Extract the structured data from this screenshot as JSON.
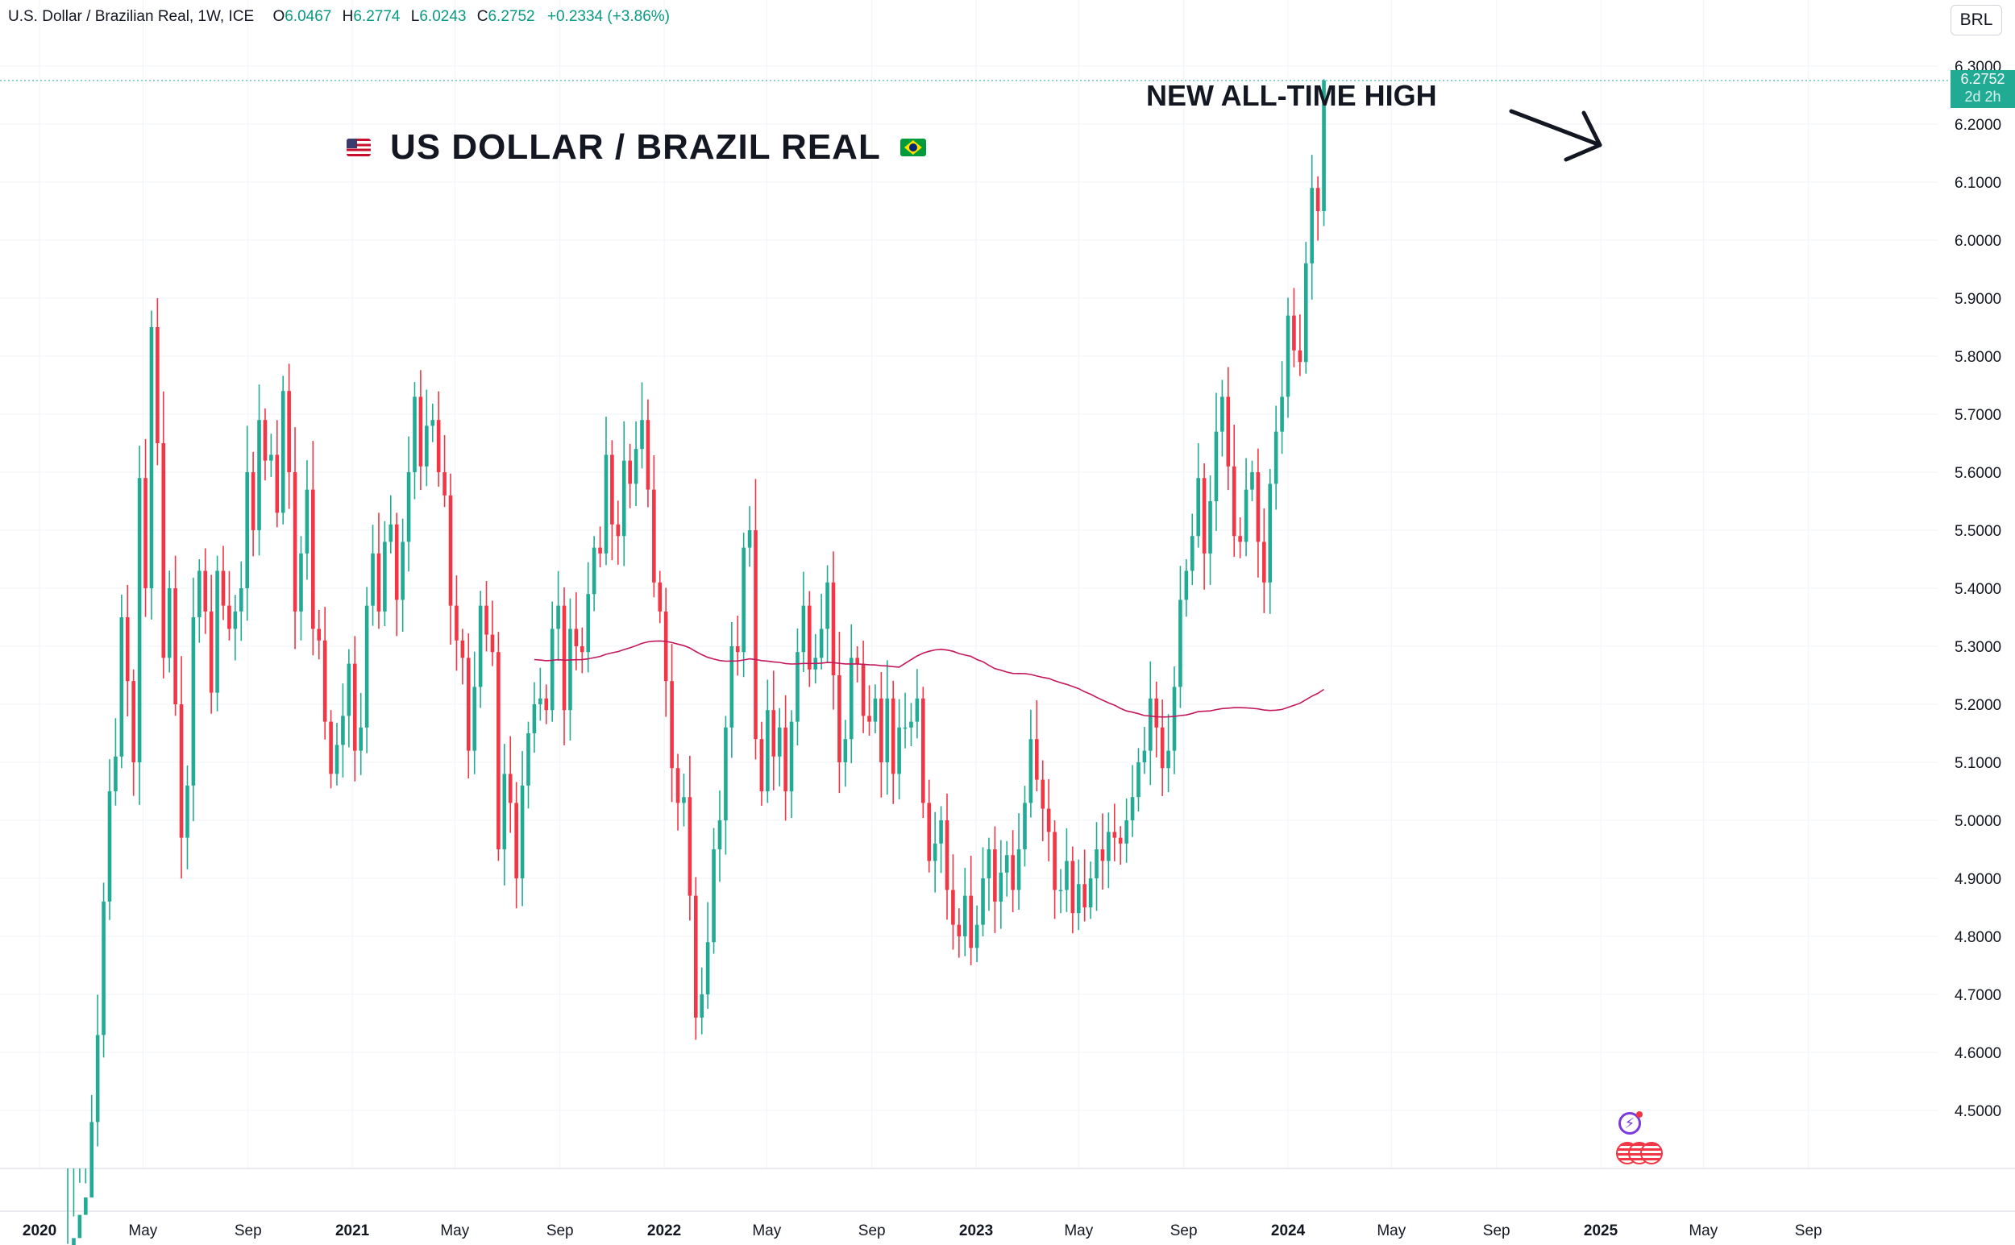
{
  "header": {
    "symbol": "U.S. Dollar / Brazilian Real, 1W, ICE",
    "open_label": "O",
    "open_value": "6.0467",
    "high_label": "H",
    "high_value": "6.2774",
    "low_label": "L",
    "low_value": "6.0243",
    "close_label": "C",
    "close_value": "6.2752",
    "change": "+0.2334 (+3.86%)"
  },
  "currency_button": "BRL",
  "annotations": {
    "title": "US DOLLAR / BRAZIL REAL",
    "all_time_high": "NEW ALL-TIME HIGH"
  },
  "last_price": {
    "value": "6.2752",
    "countdown": "2d 2h"
  },
  "icons": [
    "us-flag-icon",
    "brazil-flag-icon",
    "arrow-icon",
    "lightning-icon",
    "us-flag-event-icon"
  ],
  "colors": {
    "up": "#22ab94",
    "down": "#f23645",
    "ma": "#c2185b",
    "grid": "#f0f3fa",
    "price_box": "#22ab94"
  },
  "chart_data": {
    "type": "candlestick",
    "series_name": "U.S. Dollar / Brazilian Real",
    "interval": "1W",
    "ylim": [
      4.4,
      6.3
    ],
    "y_ticks": [
      "6.3000",
      "6.2000",
      "6.1000",
      "6.0000",
      "5.9000",
      "5.8000",
      "5.7000",
      "5.6000",
      "5.5000",
      "5.4000",
      "5.3000",
      "5.2000",
      "5.1000",
      "5.0000",
      "4.9000",
      "4.8000",
      "4.7000",
      "4.6000",
      "4.5000"
    ],
    "x_ticks": [
      {
        "label": "2020",
        "date": "2020-01-01",
        "major": true
      },
      {
        "label": "May",
        "date": "2020-05-01",
        "major": false
      },
      {
        "label": "Sep",
        "date": "2020-09-01",
        "major": false
      },
      {
        "label": "2021",
        "date": "2021-01-01",
        "major": true
      },
      {
        "label": "May",
        "date": "2021-05-01",
        "major": false
      },
      {
        "label": "Sep",
        "date": "2021-09-01",
        "major": false
      },
      {
        "label": "2022",
        "date": "2022-01-01",
        "major": true
      },
      {
        "label": "May",
        "date": "2022-05-01",
        "major": false
      },
      {
        "label": "Sep",
        "date": "2022-09-01",
        "major": false
      },
      {
        "label": "2023",
        "date": "2023-01-01",
        "major": true
      },
      {
        "label": "May",
        "date": "2023-05-01",
        "major": false
      },
      {
        "label": "Sep",
        "date": "2023-09-01",
        "major": false
      },
      {
        "label": "2024",
        "date": "2024-01-01",
        "major": true
      },
      {
        "label": "May",
        "date": "2024-05-01",
        "major": false
      },
      {
        "label": "Sep",
        "date": "2024-09-01",
        "major": false
      },
      {
        "label": "2025",
        "date": "2025-01-01",
        "major": true
      },
      {
        "label": "May",
        "date": "2025-05-01",
        "major": false
      },
      {
        "label": "Sep",
        "date": "2025-09-01",
        "major": false
      }
    ],
    "x_range": [
      "2019-12-31",
      "2025-12-15"
    ],
    "first_week": "2020-02-03",
    "close": [
      4.25,
      4.28,
      4.32,
      4.35,
      4.48,
      4.63,
      4.86,
      5.05,
      5.11,
      5.35,
      5.24,
      5.1,
      5.59,
      5.4,
      5.85,
      5.65,
      5.28,
      5.4,
      5.2,
      4.97,
      5.06,
      5.35,
      5.43,
      5.36,
      5.22,
      5.43,
      5.37,
      5.33,
      5.36,
      5.4,
      5.6,
      5.5,
      5.69,
      5.62,
      5.63,
      5.53,
      5.74,
      5.6,
      5.36,
      5.46,
      5.57,
      5.33,
      5.31,
      5.17,
      5.08,
      5.13,
      5.18,
      5.27,
      5.12,
      5.16,
      5.37,
      5.46,
      5.36,
      5.48,
      5.51,
      5.38,
      5.48,
      5.6,
      5.73,
      5.61,
      5.68,
      5.69,
      5.6,
      5.56,
      5.37,
      5.31,
      5.28,
      5.12,
      5.23,
      5.37,
      5.32,
      5.29,
      4.95,
      5.08,
      5.03,
      4.9,
      5.06,
      5.15,
      5.2,
      5.21,
      5.19,
      5.33,
      5.37,
      5.19,
      5.33,
      5.3,
      5.29,
      5.39,
      5.47,
      5.46,
      5.63,
      5.51,
      5.49,
      5.62,
      5.58,
      5.64,
      5.69,
      5.57,
      5.41,
      5.36,
      5.24,
      5.09,
      5.03,
      5.04,
      4.87,
      4.66,
      4.7,
      4.79,
      4.95,
      5.0,
      5.16,
      5.3,
      5.29,
      5.47,
      5.5,
      5.14,
      5.05,
      5.19,
      5.11,
      5.16,
      5.05,
      5.17,
      5.29,
      5.37,
      5.26,
      5.28,
      5.33,
      5.41,
      5.25,
      5.1,
      5.14,
      5.28,
      5.27,
      5.18,
      5.17,
      5.21,
      5.1,
      5.21,
      5.08,
      5.16,
      5.16,
      5.17,
      5.21,
      5.03,
      4.93,
      4.96,
      5.0,
      4.88,
      4.82,
      4.8,
      4.87,
      4.78,
      4.82,
      4.9,
      4.95,
      4.86,
      4.91,
      4.94,
      4.88,
      4.95,
      5.03,
      5.14,
      5.07,
      5.02,
      4.98,
      4.88,
      4.88,
      4.93,
      4.84,
      4.89,
      4.85,
      4.9,
      4.95,
      4.93,
      4.98,
      4.97,
      4.96,
      5.0,
      5.04,
      5.1,
      5.12,
      5.21,
      5.16,
      5.09,
      5.12,
      5.23,
      5.38,
      5.43,
      5.49,
      5.59,
      5.46,
      5.55,
      5.67,
      5.73,
      5.61,
      5.49,
      5.48,
      5.57,
      5.6,
      5.48,
      5.41,
      5.58,
      5.67,
      5.73,
      5.87,
      5.81,
      5.79,
      5.96,
      6.09,
      6.05,
      6.2752
    ]
  }
}
